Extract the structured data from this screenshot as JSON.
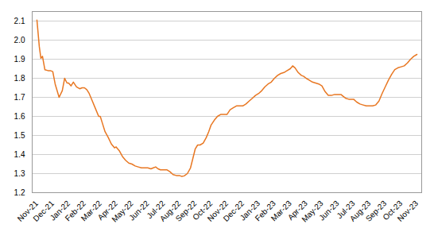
{
  "chart_data": {
    "type": "line",
    "color": "#E87722",
    "grid": true,
    "x": [
      0,
      0.15,
      0.25,
      0.35,
      0.5,
      0.7,
      0.85,
      1,
      1.15,
      1.4,
      1.6,
      1.75,
      1.9,
      2,
      2.15,
      2.3,
      2.5,
      2.7,
      2.85,
      3,
      3.15,
      3.3,
      3.5,
      3.7,
      3.9,
      4,
      4.15,
      4.3,
      4.5,
      4.7,
      4.9,
      5,
      5.2,
      5.4,
      5.6,
      5.8,
      6,
      6.2,
      6.4,
      6.6,
      6.8,
      7,
      7.2,
      7.35,
      7.5,
      7.65,
      7.8,
      8,
      8.2,
      8.4,
      8.6,
      8.8,
      9,
      9.15,
      9.3,
      9.5,
      9.7,
      9.85,
      10,
      10.15,
      10.3,
      10.5,
      10.7,
      10.85,
      11,
      11.2,
      11.4,
      11.6,
      11.8,
      12,
      12.2,
      12.4,
      12.6,
      12.8,
      13,
      13.2,
      13.4,
      13.6,
      13.8,
      14,
      14.2,
      14.4,
      14.6,
      14.8,
      15,
      15.2,
      15.4,
      15.6,
      15.8,
      16,
      16.15,
      16.3,
      16.5,
      16.7,
      16.85,
      17,
      17.2,
      17.4,
      17.6,
      17.8,
      18,
      18.2,
      18.4,
      18.6,
      18.8,
      19,
      19.2,
      19.35,
      19.5,
      19.7,
      19.9,
      20,
      20.2,
      20.4,
      20.6,
      20.8,
      21,
      21.2,
      21.4,
      21.6,
      21.8,
      22,
      22.2,
      22.4,
      22.6,
      22.8,
      23,
      23.2,
      23.4,
      23.6,
      23.8,
      24
    ],
    "values": [
      2.105,
      1.965,
      1.905,
      1.915,
      1.845,
      1.84,
      1.84,
      1.835,
      1.77,
      1.7,
      1.735,
      1.8,
      1.775,
      1.775,
      1.76,
      1.78,
      1.755,
      1.745,
      1.75,
      1.75,
      1.74,
      1.72,
      1.68,
      1.64,
      1.6,
      1.6,
      1.56,
      1.52,
      1.49,
      1.455,
      1.435,
      1.44,
      1.42,
      1.39,
      1.37,
      1.355,
      1.35,
      1.34,
      1.335,
      1.33,
      1.33,
      1.33,
      1.325,
      1.33,
      1.335,
      1.325,
      1.32,
      1.32,
      1.32,
      1.31,
      1.295,
      1.29,
      1.29,
      1.285,
      1.288,
      1.3,
      1.33,
      1.38,
      1.43,
      1.45,
      1.45,
      1.46,
      1.49,
      1.52,
      1.555,
      1.58,
      1.6,
      1.61,
      1.61,
      1.61,
      1.635,
      1.645,
      1.655,
      1.655,
      1.655,
      1.665,
      1.68,
      1.695,
      1.71,
      1.72,
      1.735,
      1.755,
      1.77,
      1.78,
      1.8,
      1.815,
      1.825,
      1.83,
      1.84,
      1.85,
      1.865,
      1.855,
      1.83,
      1.815,
      1.81,
      1.8,
      1.79,
      1.78,
      1.775,
      1.77,
      1.76,
      1.73,
      1.71,
      1.71,
      1.715,
      1.715,
      1.715,
      1.705,
      1.695,
      1.69,
      1.69,
      1.69,
      1.675,
      1.665,
      1.66,
      1.655,
      1.655,
      1.655,
      1.66,
      1.68,
      1.72,
      1.755,
      1.79,
      1.82,
      1.845,
      1.855,
      1.86,
      1.865,
      1.88,
      1.9,
      1.915,
      1.925
    ],
    "xlim": [
      -0.3,
      24.3
    ],
    "xticks": [
      {
        "value": 0,
        "label": "Nov-21"
      },
      {
        "value": 1,
        "label": "Dec-21"
      },
      {
        "value": 2,
        "label": "Jan-22"
      },
      {
        "value": 3,
        "label": "Feb-22"
      },
      {
        "value": 4,
        "label": "Mar-22"
      },
      {
        "value": 5,
        "label": "Apr-22"
      },
      {
        "value": 6,
        "label": "May-22"
      },
      {
        "value": 7,
        "label": "Jun-22"
      },
      {
        "value": 8,
        "label": "Jul-22"
      },
      {
        "value": 9,
        "label": "Aug-22"
      },
      {
        "value": 10,
        "label": "Sep-22"
      },
      {
        "value": 11,
        "label": "Oct-22"
      },
      {
        "value": 12,
        "label": "Nov-22"
      },
      {
        "value": 13,
        "label": "Dec-22"
      },
      {
        "value": 14,
        "label": "Jan-23"
      },
      {
        "value": 15,
        "label": "Feb-23"
      },
      {
        "value": 16,
        "label": "Mar-23"
      },
      {
        "value": 17,
        "label": "Apr-23"
      },
      {
        "value": 18,
        "label": "May-23"
      },
      {
        "value": 19,
        "label": "Jun-23"
      },
      {
        "value": 20,
        "label": "Jul-23"
      },
      {
        "value": 21,
        "label": "Aug-23"
      },
      {
        "value": 22,
        "label": "Sep-23"
      },
      {
        "value": 23,
        "label": "Oct-23"
      },
      {
        "value": 24,
        "label": "Nov-23"
      }
    ],
    "ylim": [
      1.2,
      2.15
    ],
    "yticks": [
      1.2,
      1.3,
      1.4,
      1.5,
      1.6,
      1.7,
      1.8,
      1.9,
      {
        "value": 2.0,
        "label": "2.0"
      },
      2.1
    ]
  }
}
